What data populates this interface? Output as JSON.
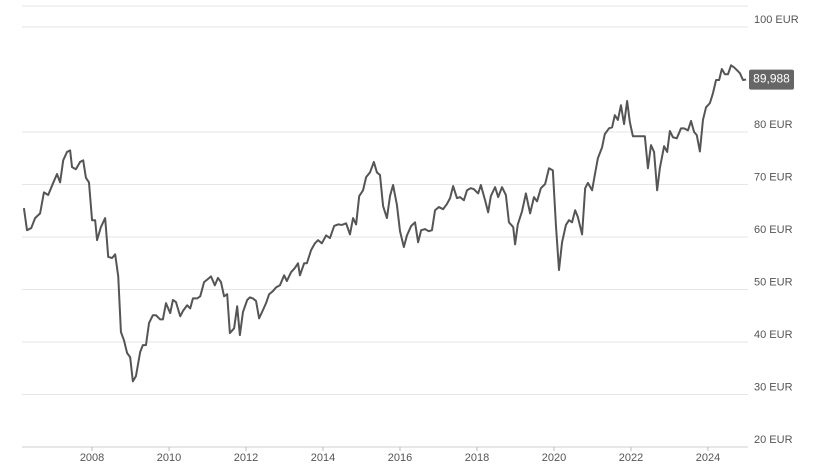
{
  "chart_data": {
    "type": "line",
    "color": "#555555",
    "x": [
      2006.23,
      2006.31,
      2006.42,
      2006.52,
      2006.65,
      2006.75,
      2006.86,
      2006.99,
      2007.09,
      2007.17,
      2007.25,
      2007.35,
      2007.43,
      2007.48,
      2007.58,
      2007.69,
      2007.77,
      2007.84,
      2007.92,
      2008.0,
      2008.08,
      2008.13,
      2008.23,
      2008.34,
      2008.42,
      2008.52,
      2008.6,
      2008.68,
      2008.75,
      2008.83,
      2008.91,
      2008.99,
      2009.06,
      2009.14,
      2009.25,
      2009.32,
      2009.4,
      2009.48,
      2009.58,
      2009.66,
      2009.77,
      2009.84,
      2009.92,
      2010.03,
      2010.1,
      2010.18,
      2010.29,
      2010.36,
      2010.47,
      2010.55,
      2010.62,
      2010.73,
      2010.81,
      2010.91,
      2011.01,
      2011.09,
      2011.19,
      2011.27,
      2011.35,
      2011.43,
      2011.51,
      2011.58,
      2011.69,
      2011.77,
      2011.84,
      2011.92,
      2012.03,
      2012.1,
      2012.18,
      2012.26,
      2012.34,
      2012.44,
      2012.52,
      2012.6,
      2012.7,
      2012.78,
      2012.88,
      2012.99,
      2013.06,
      2013.17,
      2013.27,
      2013.35,
      2013.4,
      2013.51,
      2013.58,
      2013.69,
      2013.79,
      2013.87,
      2013.97,
      2014.08,
      2014.18,
      2014.29,
      2014.39,
      2014.49,
      2014.6,
      2014.7,
      2014.78,
      2014.86,
      2014.94,
      2015.04,
      2015.12,
      2015.22,
      2015.32,
      2015.4,
      2015.48,
      2015.56,
      2015.66,
      2015.74,
      2015.82,
      2015.92,
      2016.0,
      2016.1,
      2016.18,
      2016.29,
      2016.39,
      2016.47,
      2016.55,
      2016.65,
      2016.75,
      2016.83,
      2016.91,
      2017.01,
      2017.12,
      2017.22,
      2017.3,
      2017.38,
      2017.48,
      2017.56,
      2017.66,
      2017.74,
      2017.84,
      2017.92,
      2018.03,
      2018.1,
      2018.21,
      2018.29,
      2018.36,
      2018.47,
      2018.55,
      2018.65,
      2018.75,
      2018.83,
      2018.94,
      2018.99,
      2019.06,
      2019.17,
      2019.27,
      2019.38,
      2019.48,
      2019.56,
      2019.66,
      2019.77,
      2019.87,
      2019.97,
      2020.05,
      2020.13,
      2020.21,
      2020.31,
      2020.39,
      2020.47,
      2020.55,
      2020.62,
      2020.73,
      2020.81,
      2020.88,
      2020.99,
      2021.06,
      2021.14,
      2021.25,
      2021.32,
      2021.43,
      2021.51,
      2021.58,
      2021.66,
      2021.74,
      2021.82,
      2021.9,
      2021.97,
      2022.05,
      2022.16,
      2022.26,
      2022.36,
      2022.44,
      2022.52,
      2022.6,
      2022.68,
      2022.75,
      2022.86,
      2022.94,
      2023.01,
      2023.09,
      2023.19,
      2023.3,
      2023.38,
      2023.48,
      2023.56,
      2023.64,
      2023.71,
      2023.79,
      2023.87,
      2023.95,
      2024.05,
      2024.13,
      2024.21,
      2024.29,
      2024.36,
      2024.44,
      2024.52,
      2024.6,
      2024.68,
      2024.75,
      2024.83,
      2024.91,
      2024.99
    ],
    "values": [
      65.5,
      61.3,
      61.7,
      63.6,
      64.5,
      68.5,
      68.0,
      70.3,
      72.0,
      70.4,
      74.6,
      76.2,
      76.5,
      73.3,
      72.9,
      74.3,
      74.6,
      71.3,
      70.4,
      63.2,
      63.2,
      59.4,
      61.9,
      63.6,
      56.2,
      56.0,
      56.7,
      52.5,
      41.9,
      40.3,
      37.9,
      37.1,
      32.5,
      33.5,
      38.1,
      39.4,
      39.4,
      43.6,
      45.1,
      45.1,
      44.3,
      44.3,
      47.4,
      45.5,
      48.0,
      47.6,
      44.9,
      45.9,
      47.0,
      46.4,
      48.3,
      48.3,
      48.7,
      51.4,
      52.0,
      52.5,
      50.8,
      52.2,
      51.4,
      48.7,
      49.1,
      41.7,
      42.6,
      46.8,
      41.3,
      45.7,
      48.0,
      48.5,
      48.3,
      47.8,
      44.5,
      46.1,
      47.4,
      49.1,
      49.7,
      50.4,
      50.8,
      52.7,
      51.6,
      53.3,
      54.1,
      55.0,
      52.7,
      55.0,
      55.0,
      57.5,
      58.8,
      59.4,
      58.8,
      60.3,
      59.8,
      62.1,
      62.4,
      62.3,
      62.6,
      60.5,
      63.6,
      62.4,
      67.8,
      68.9,
      71.4,
      72.3,
      74.3,
      72.3,
      71.8,
      65.9,
      63.6,
      67.8,
      69.9,
      66.1,
      61.1,
      58.1,
      60.3,
      62.1,
      62.8,
      59.0,
      61.3,
      61.5,
      61.1,
      61.3,
      65.1,
      65.7,
      65.3,
      66.3,
      67.4,
      69.7,
      67.4,
      67.6,
      67.0,
      68.9,
      69.3,
      69.1,
      68.3,
      69.9,
      67.0,
      64.7,
      67.8,
      69.5,
      67.6,
      69.5,
      68.0,
      62.8,
      61.9,
      58.6,
      62.4,
      64.9,
      68.3,
      64.5,
      67.6,
      66.8,
      69.3,
      70.1,
      73.1,
      72.7,
      62.3,
      53.7,
      59.0,
      62.3,
      63.2,
      62.8,
      65.1,
      63.8,
      60.5,
      69.3,
      70.3,
      68.9,
      71.8,
      75.0,
      77.1,
      79.6,
      80.7,
      80.9,
      83.2,
      82.3,
      85.1,
      81.5,
      85.9,
      81.9,
      79.2,
      79.2,
      79.2,
      79.2,
      73.1,
      77.5,
      76.2,
      68.9,
      73.1,
      77.3,
      76.2,
      80.2,
      79.0,
      78.8,
      80.7,
      80.7,
      80.3,
      82.1,
      80.0,
      79.4,
      76.3,
      82.3,
      84.7,
      85.5,
      87.4,
      89.9,
      89.9,
      92.0,
      91.0,
      91.0,
      92.7,
      92.3,
      91.8,
      91.2,
      89.9,
      89.988
    ],
    "xlim": [
      2006.18,
      2025.04
    ],
    "xticks": [
      2008,
      2010,
      2012,
      2014,
      2016,
      2018,
      2020,
      2022,
      2024
    ],
    "ylim": [
      20,
      104
    ],
    "yticks": [
      {
        "value": 20,
        "label": "20 EUR"
      },
      {
        "value": 30,
        "label": "30 EUR"
      },
      {
        "value": 40,
        "label": "40 EUR"
      },
      {
        "value": 50,
        "label": "50 EUR"
      },
      {
        "value": 60,
        "label": "60 EUR"
      },
      {
        "value": 70,
        "label": "70 EUR"
      },
      {
        "value": 80,
        "label": "80 EUR"
      },
      {
        "value": 100,
        "label": "100 EUR"
      }
    ],
    "grid": true,
    "price_label": {
      "value": 89.988,
      "label": "89,988"
    }
  }
}
